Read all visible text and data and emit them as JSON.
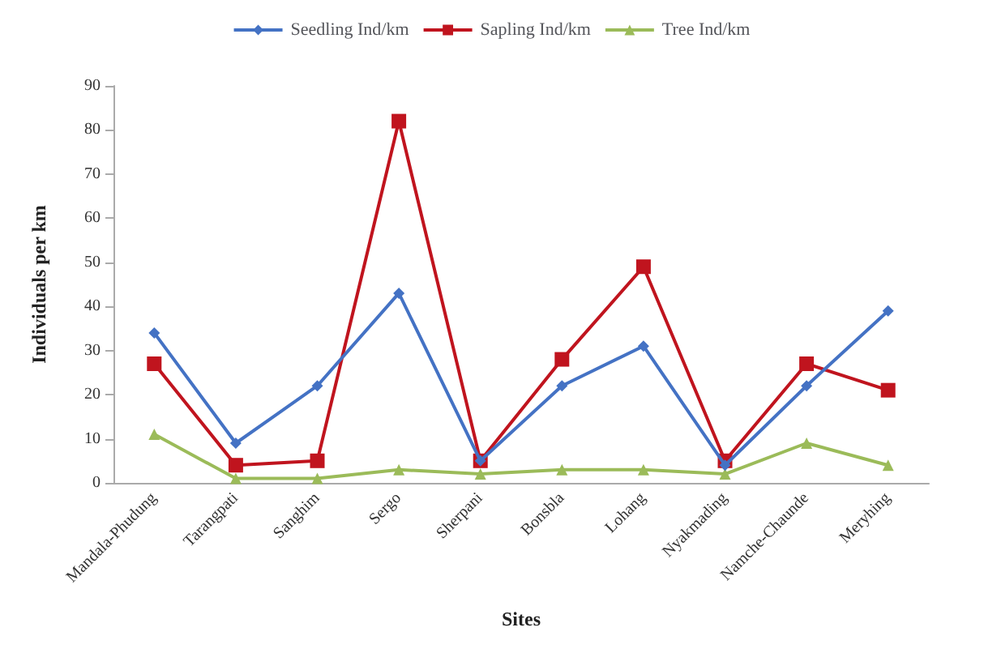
{
  "chart_data": {
    "type": "line",
    "xlabel": "Sites",
    "ylabel": "Individuals per km",
    "categories": [
      "Mandala-Phudung",
      "Tarangpati",
      "Sanghim",
      "Sergo",
      "Sherpani",
      "Bonsbla",
      "Lohang",
      "Nyakmading",
      "Namche-Chaunde",
      "Meryhing"
    ],
    "series": [
      {
        "name": "Seedling Ind/km",
        "color": "#4472c4",
        "marker": "diamond",
        "values": [
          34,
          9,
          22,
          43,
          5,
          22,
          31,
          4,
          22,
          39
        ]
      },
      {
        "name": "Sapling Ind/km",
        "color": "#c0141e",
        "marker": "square",
        "values": [
          27,
          4,
          5,
          82,
          5,
          28,
          49,
          5,
          27,
          21
        ]
      },
      {
        "name": "Tree Ind/km",
        "color": "#9bbb59",
        "marker": "triangle",
        "values": [
          11,
          1,
          1,
          3,
          2,
          3,
          3,
          2,
          9,
          4
        ]
      }
    ],
    "ylim": [
      0,
      90
    ],
    "yticks": [
      0,
      10,
      20,
      30,
      40,
      50,
      60,
      70,
      80,
      90
    ],
    "grid": false,
    "legend": "top"
  }
}
